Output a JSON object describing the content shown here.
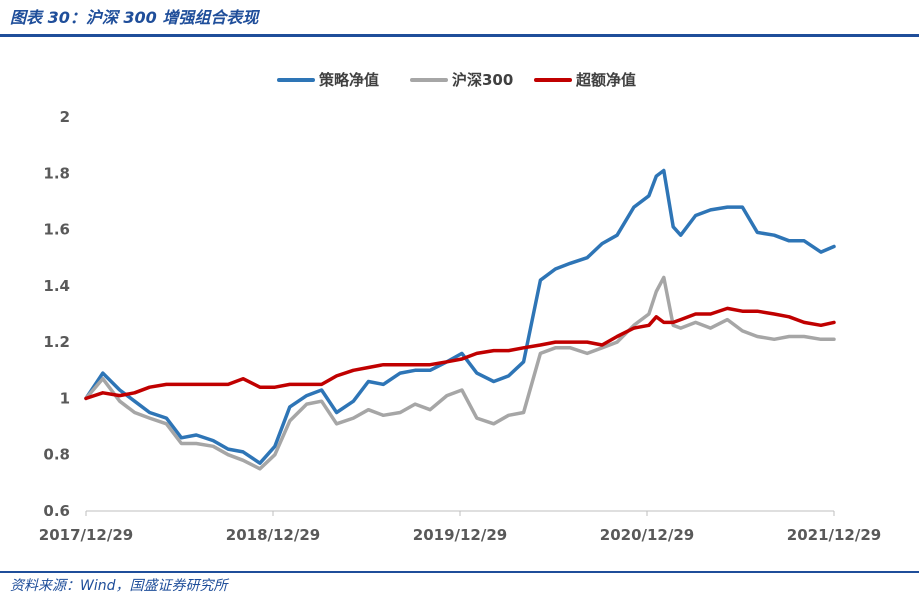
{
  "figure": {
    "title": "图表 30：沪深 300 增强组合表现",
    "source": "资料来源：Wind，国盛证券研究所"
  },
  "chart_data": {
    "type": "line",
    "title": "",
    "xlabel": "",
    "ylabel": "",
    "ylim": [
      0.6,
      2.0
    ],
    "yticks": [
      "0.6",
      "0.8",
      "1",
      "1.2",
      "1.4",
      "1.6",
      "1.8",
      "2"
    ],
    "x_ticks": [
      "2017/12/29",
      "2018/12/29",
      "2019/12/29",
      "2020/12/29",
      "2021/12/29"
    ],
    "x": [
      2017.99,
      2018.08,
      2018.17,
      2018.25,
      2018.33,
      2018.42,
      2018.5,
      2018.58,
      2018.67,
      2018.75,
      2018.83,
      2018.92,
      2019.0,
      2019.08,
      2019.17,
      2019.25,
      2019.33,
      2019.42,
      2019.5,
      2019.58,
      2019.67,
      2019.75,
      2019.83,
      2019.92,
      2020.0,
      2020.08,
      2020.17,
      2020.25,
      2020.33,
      2020.42,
      2020.5,
      2020.58,
      2020.67,
      2020.75,
      2020.83,
      2020.92,
      2021.0,
      2021.04,
      2021.08,
      2021.13,
      2021.17,
      2021.25,
      2021.33,
      2021.42,
      2021.5,
      2021.58,
      2021.67,
      2021.75,
      2021.83,
      2021.92,
      2021.99
    ],
    "series": [
      {
        "name": "策略净值",
        "color": "#2e75b6",
        "values": [
          1.0,
          1.09,
          1.03,
          0.99,
          0.95,
          0.93,
          0.86,
          0.87,
          0.85,
          0.82,
          0.81,
          0.77,
          0.83,
          0.97,
          1.01,
          1.03,
          0.95,
          0.99,
          1.06,
          1.05,
          1.09,
          1.1,
          1.1,
          1.13,
          1.16,
          1.09,
          1.06,
          1.08,
          1.13,
          1.42,
          1.46,
          1.48,
          1.5,
          1.55,
          1.58,
          1.68,
          1.72,
          1.79,
          1.81,
          1.61,
          1.58,
          1.65,
          1.67,
          1.68,
          1.68,
          1.59,
          1.58,
          1.56,
          1.56,
          1.52,
          1.54
        ]
      },
      {
        "name": "沪深300",
        "color": "#a6a6a6",
        "values": [
          1.0,
          1.07,
          0.99,
          0.95,
          0.93,
          0.91,
          0.84,
          0.84,
          0.83,
          0.8,
          0.78,
          0.75,
          0.8,
          0.92,
          0.98,
          0.99,
          0.91,
          0.93,
          0.96,
          0.94,
          0.95,
          0.98,
          0.96,
          1.01,
          1.03,
          0.93,
          0.91,
          0.94,
          0.95,
          1.16,
          1.18,
          1.18,
          1.16,
          1.18,
          1.2,
          1.26,
          1.3,
          1.38,
          1.43,
          1.26,
          1.25,
          1.27,
          1.25,
          1.28,
          1.24,
          1.22,
          1.21,
          1.22,
          1.22,
          1.21,
          1.21
        ]
      },
      {
        "name": "超额净值",
        "color": "#c00000",
        "values": [
          1.0,
          1.02,
          1.01,
          1.02,
          1.04,
          1.05,
          1.05,
          1.05,
          1.05,
          1.05,
          1.07,
          1.04,
          1.04,
          1.05,
          1.05,
          1.05,
          1.08,
          1.1,
          1.11,
          1.12,
          1.12,
          1.12,
          1.12,
          1.13,
          1.14,
          1.16,
          1.17,
          1.17,
          1.18,
          1.19,
          1.2,
          1.2,
          1.2,
          1.19,
          1.22,
          1.25,
          1.26,
          1.29,
          1.27,
          1.27,
          1.28,
          1.3,
          1.3,
          1.32,
          1.31,
          1.31,
          1.3,
          1.29,
          1.27,
          1.26,
          1.27
        ]
      }
    ],
    "grid": false,
    "legend_position": "top-center"
  }
}
